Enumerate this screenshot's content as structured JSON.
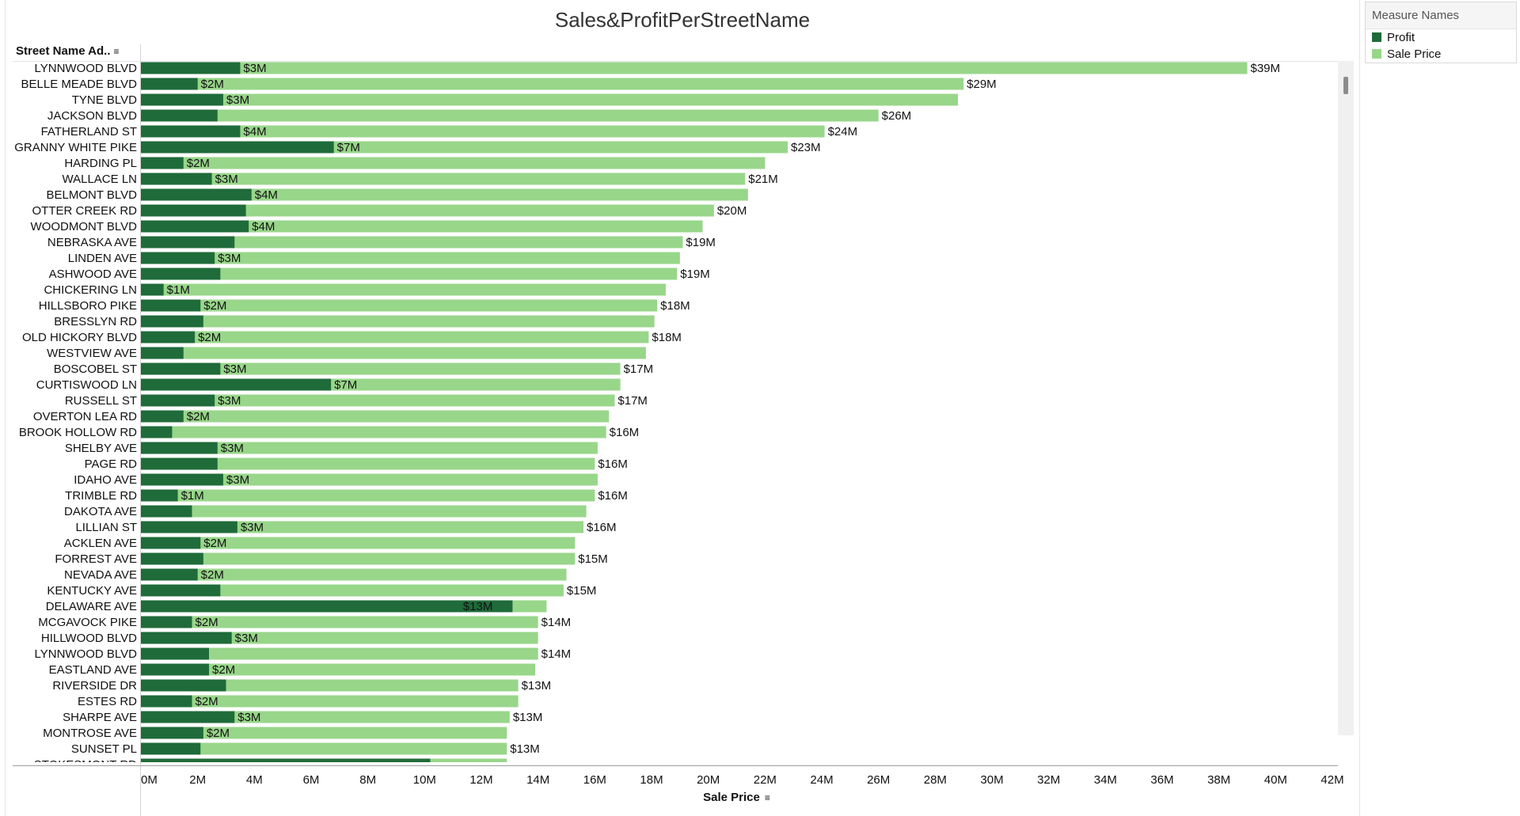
{
  "legend": {
    "title": "Measure Names",
    "items": [
      {
        "label": "Profit",
        "color": "#1f6b3a"
      },
      {
        "label": "Sale Price",
        "color": "#98d68a"
      }
    ]
  },
  "chart_data": {
    "type": "bar",
    "orientation": "horizontal",
    "stacking": "overlapping",
    "title": "Sales&ProfitPerStreetName",
    "row_header": "Street Name Ad..",
    "xlabel": "Sale Price",
    "xlim": [
      0,
      42
    ],
    "x_unit": "millions of dollars",
    "x_ticks": [
      "0M",
      "2M",
      "4M",
      "6M",
      "8M",
      "10M",
      "12M",
      "14M",
      "16M",
      "18M",
      "20M",
      "22M",
      "24M",
      "26M",
      "28M",
      "30M",
      "32M",
      "34M",
      "36M",
      "38M",
      "40M",
      "42M"
    ],
    "categories": [
      "LYNNWOOD BLVD",
      "BELLE MEADE BLVD",
      "TYNE BLVD",
      "JACKSON BLVD",
      "FATHERLAND ST",
      "GRANNY WHITE PIKE",
      "HARDING PL",
      "WALLACE LN",
      "BELMONT BLVD",
      "OTTER CREEK RD",
      "WOODMONT BLVD",
      "NEBRASKA AVE",
      "LINDEN AVE",
      "ASHWOOD AVE",
      "CHICKERING LN",
      "HILLSBORO PIKE",
      "BRESSLYN RD",
      "OLD HICKORY BLVD",
      "WESTVIEW AVE",
      "BOSCOBEL ST",
      "CURTISWOOD LN",
      "RUSSELL ST",
      "OVERTON LEA RD",
      "BROOK HOLLOW RD",
      "SHELBY AVE",
      "PAGE RD",
      "IDAHO AVE",
      "TRIMBLE RD",
      "DAKOTA AVE",
      "LILLIAN ST",
      "ACKLEN AVE",
      "FORREST AVE",
      "NEVADA AVE",
      "KENTUCKY AVE",
      "DELAWARE AVE",
      "MCGAVOCK PIKE",
      "HILLWOOD BLVD",
      "LYNNWOOD  BLVD",
      "EASTLAND AVE",
      "RIVERSIDE DR",
      "ESTES RD",
      "SHARPE AVE",
      "MONTROSE AVE",
      "SUNSET PL",
      "STOKESMONT RD"
    ],
    "series": [
      {
        "name": "Profit",
        "color": "#1f6b3a",
        "values": [
          3.5,
          2.0,
          2.9,
          2.7,
          3.5,
          6.8,
          1.5,
          2.5,
          3.9,
          3.7,
          3.8,
          3.3,
          2.6,
          2.8,
          0.8,
          2.1,
          2.2,
          1.9,
          1.5,
          2.8,
          6.7,
          2.6,
          1.5,
          1.1,
          2.7,
          2.7,
          2.9,
          1.3,
          1.8,
          3.4,
          2.1,
          2.2,
          2.0,
          2.8,
          13.1,
          1.8,
          3.2,
          2.4,
          2.4,
          3.0,
          1.8,
          3.3,
          2.2,
          2.1,
          10.2
        ],
        "labels": [
          "$3M",
          "$2M",
          "$3M",
          "",
          "$4M",
          "$7M",
          "$2M",
          "$3M",
          "$4M",
          "",
          "$4M",
          "",
          "$3M",
          "",
          "$1M",
          "$2M",
          "",
          "$2M",
          "",
          "$3M",
          "$7M",
          "$3M",
          "$2M",
          "",
          "$3M",
          "",
          "$3M",
          "$1M",
          "",
          "$3M",
          "$2M",
          "",
          "$2M",
          "",
          "$13M",
          "$2M",
          "$3M",
          "",
          "$2M",
          "",
          "$2M",
          "$3M",
          "$2M",
          "",
          ""
        ]
      },
      {
        "name": "Sale Price",
        "color": "#98d68a",
        "values": [
          39.0,
          29.0,
          28.8,
          26.0,
          24.1,
          22.8,
          22.0,
          21.3,
          21.4,
          20.2,
          19.8,
          19.1,
          19.0,
          18.9,
          18.5,
          18.2,
          18.1,
          17.9,
          17.8,
          16.9,
          16.9,
          16.7,
          16.5,
          16.4,
          16.1,
          16.0,
          16.1,
          16.0,
          15.7,
          15.6,
          15.3,
          15.3,
          15.0,
          14.9,
          14.3,
          14.0,
          14.0,
          14.0,
          13.9,
          13.3,
          13.3,
          13.0,
          12.9,
          12.9,
          12.9
        ],
        "labels": [
          "$39M",
          "$29M",
          "",
          "$26M",
          "$24M",
          "$23M",
          "",
          "$21M",
          "",
          "$20M",
          "",
          "$19M",
          "",
          "$19M",
          "",
          "$18M",
          "",
          "$18M",
          "",
          "$17M",
          "",
          "$17M",
          "",
          "$16M",
          "",
          "$16M",
          "",
          "$16M",
          "",
          "$16M",
          "",
          "$15M",
          "",
          "$15M",
          "",
          "$14M",
          "",
          "$14M",
          "",
          "$13M",
          "",
          "$13M",
          "",
          "$13M",
          ""
        ]
      }
    ]
  }
}
